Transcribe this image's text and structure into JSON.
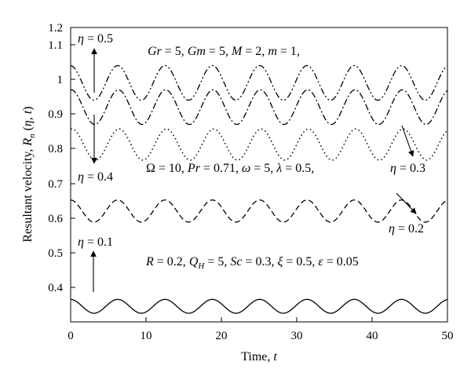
{
  "chart_data": {
    "type": "line",
    "xlabel": "Time, t",
    "xlabel_parts": [
      "Time, ",
      "t"
    ],
    "ylabel_parts": [
      "Resultant velocity, ",
      "R",
      "n",
      " (",
      "η",
      ", ",
      "t",
      ")"
    ],
    "xlim": [
      0,
      50
    ],
    "ylim": [
      0.35,
      1.2
    ],
    "xticks": [
      "0",
      "10",
      "20",
      "30",
      "40",
      "50"
    ],
    "yticks": [
      "0.4",
      "0.5",
      "0.6",
      "0.7",
      "0.8",
      "0.9",
      "1",
      "1.1",
      "1.2"
    ],
    "grid": false,
    "series": [
      {
        "eta": 0.1,
        "style": "solid",
        "mean": 0.395,
        "amplitude": 0.02,
        "period": 6.28,
        "phase_min_t": 3.1
      },
      {
        "eta": 0.2,
        "style": "dashed",
        "mean": 0.67,
        "amplitude": 0.032,
        "period": 6.28,
        "phase_min_t": 3.1
      },
      {
        "eta": 0.3,
        "style": "dotted",
        "mean": 0.862,
        "amplitude": 0.045,
        "period": 6.28,
        "phase_min_t": 3.3
      },
      {
        "eta": 0.4,
        "style": "dash-dot",
        "mean": 0.97,
        "amplitude": 0.05,
        "period": 6.28,
        "phase_min_t": 3.2
      },
      {
        "eta": 0.5,
        "style": "dash-dot-dot",
        "mean": 1.04,
        "amplitude": 0.05,
        "period": 6.28,
        "phase_min_t": 3.1
      }
    ],
    "annotations": {
      "params_line1": "Gr = 5, Gm = 5, M = 2, m = 1,",
      "params_line2": "Ω = 10, Pr = 0.71, ω = 5, λ = 0.5,",
      "params_line3": "R = 0.2, QH = 5, Sc = 0.3, ξ = 0.5, ε = 0.05",
      "eta_labels": [
        "η = 0.5",
        "η = 0.4",
        "η = 0.3",
        "η = 0.2",
        "η = 0.1"
      ]
    }
  }
}
